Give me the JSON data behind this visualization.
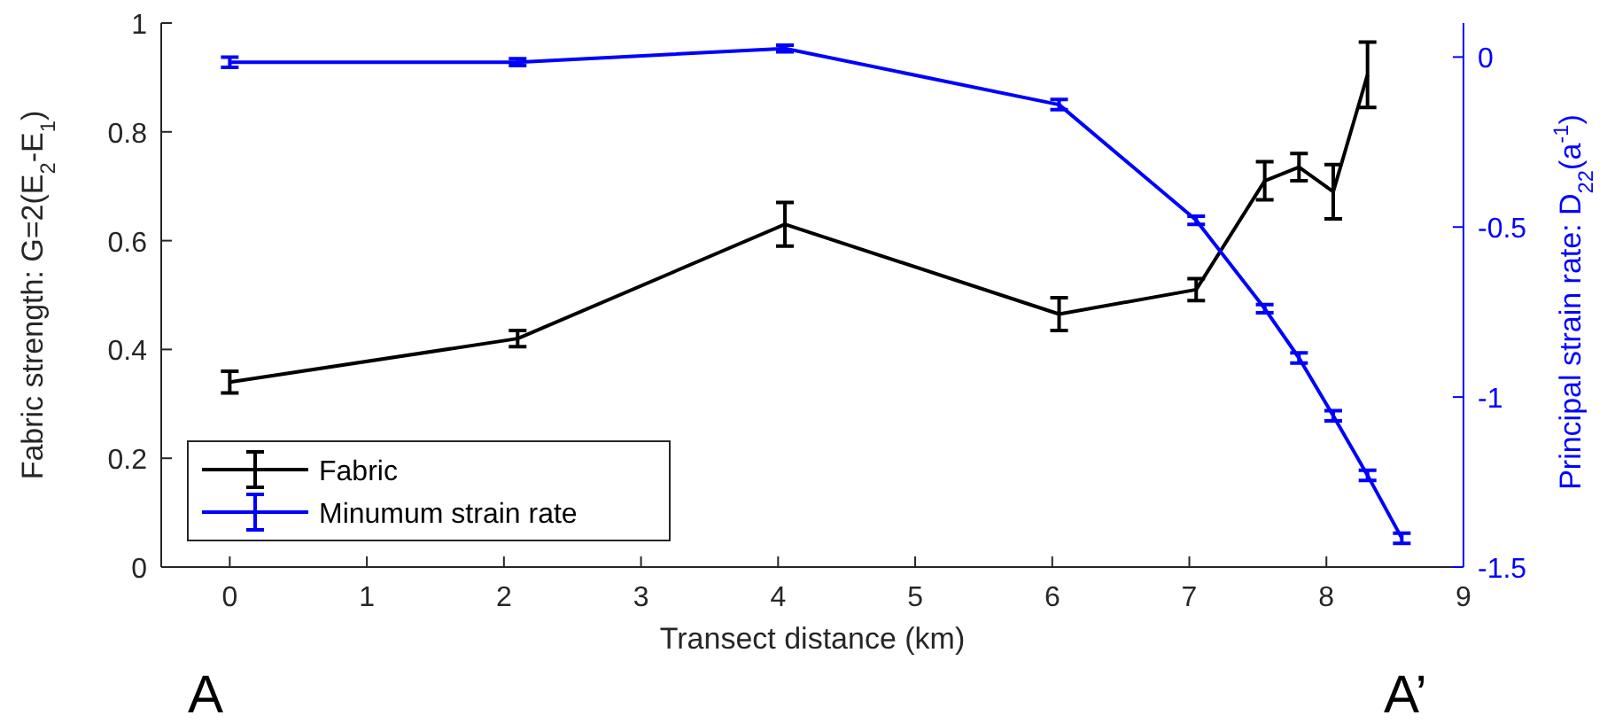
{
  "chart_data": {
    "type": "line",
    "xlabel": "Transect distance (km)",
    "ylabel": "Fabric strength: G=2(E$_{2}$-E$_{1}$)",
    "y2label": "Principal strain rate: D$_{22}$(a$^{-1}$)",
    "x": [
      0,
      2.1,
      4.05,
      6.05,
      7.05,
      7.55,
      7.8,
      8.05,
      8.3
    ],
    "series": [
      {
        "name": "Fabric",
        "color": "#000000",
        "values": [
          0.34,
          0.42,
          0.63,
          0.465,
          0.51,
          0.71,
          0.735,
          0.69,
          0.905
        ],
        "errors": [
          0.02,
          0.015,
          0.04,
          0.03,
          0.02,
          0.035,
          0.025,
          0.05,
          0.06
        ]
      },
      {
        "name": "Minumum strain rate",
        "color": "#0000ff",
        "axis": "y2",
        "x": [
          0,
          2.1,
          4.05,
          6.05,
          7.05,
          7.55,
          7.8,
          8.05,
          8.3,
          8.55
        ],
        "values": [
          -0.015,
          -0.015,
          0.025,
          -0.14,
          -0.48,
          -0.74,
          -0.885,
          -1.055,
          -1.23,
          -1.415
        ],
        "errors": [
          0.015,
          0.01,
          0.01,
          0.015,
          0.012,
          0.012,
          0.015,
          0.015,
          0.015,
          0.015
        ]
      }
    ],
    "xlim": [
      -0.5,
      9
    ],
    "xticks": [
      0,
      1,
      2,
      3,
      4,
      5,
      6,
      7,
      8,
      9
    ],
    "ylim": [
      0,
      1
    ],
    "yticks": [
      0,
      0.2,
      0.4,
      0.6,
      0.8,
      1
    ],
    "y2lim": [
      -1.5,
      0.1
    ],
    "y2ticks": [
      -1.5,
      -1,
      -0.5,
      0
    ],
    "grid": false,
    "legend": "bottom left",
    "marker": "none",
    "line_style": "solid",
    "annotations": [
      "A",
      "A’"
    ]
  }
}
